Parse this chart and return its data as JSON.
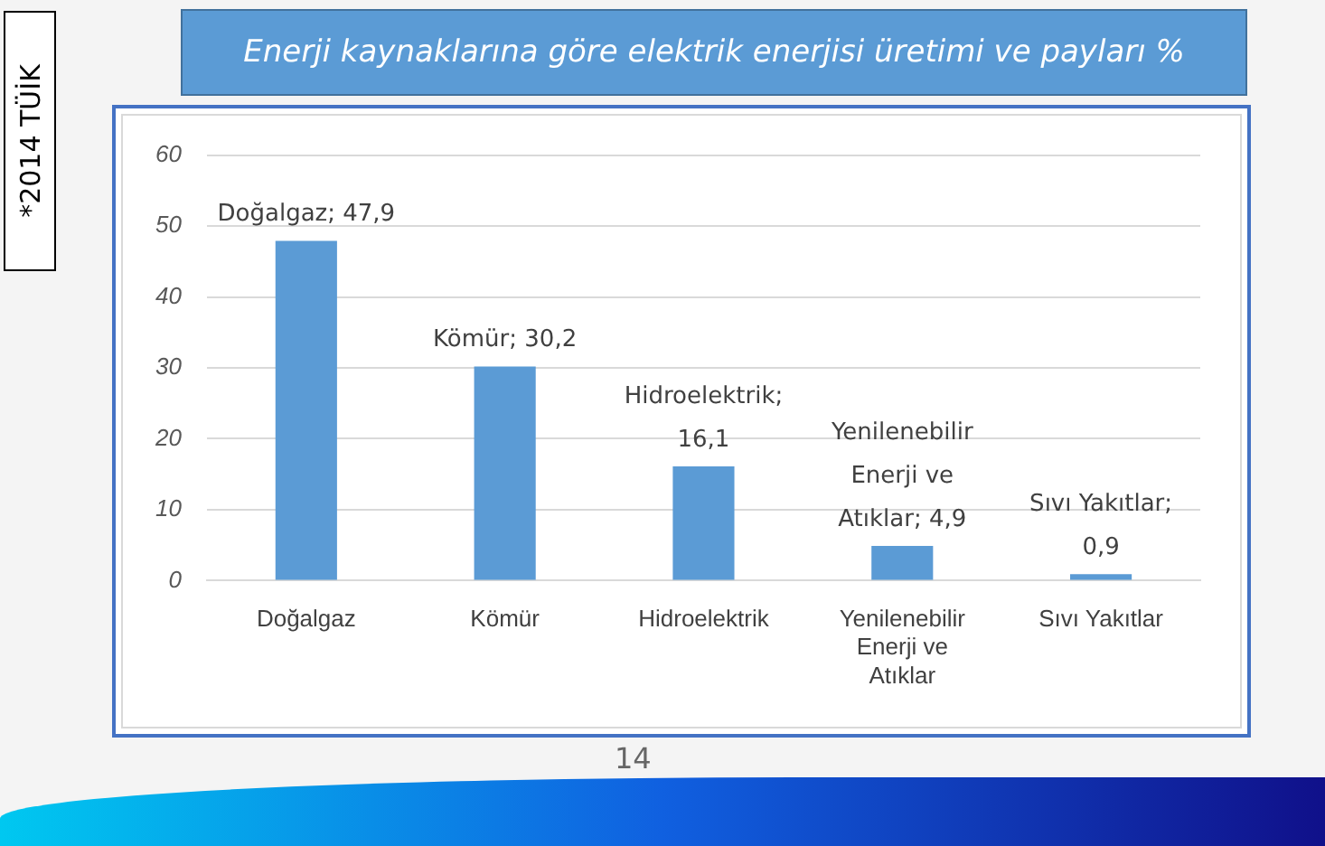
{
  "chart_data": {
    "type": "bar",
    "title": "Enerji kaynaklarına göre elektrik enerjisi üretimi ve payları %",
    "categories": [
      "Doğalgaz",
      "Kömür",
      "Hidroelektrik",
      "Yenilenebilir Enerji ve Atıklar",
      "Sıvı Yakıtlar"
    ],
    "values": [
      47.9,
      30.2,
      16.1,
      4.9,
      0.9
    ],
    "value_labels": [
      "Doğalgaz; 47,9",
      "Kömür; 30,2",
      "Hidroelektrik; 16,1",
      "Yenilenebilir Enerji ve Atıklar; 4,9",
      "Sıvı Yakıtlar; 0,9"
    ],
    "color": "#5b9bd5",
    "ylim": [
      0,
      60
    ],
    "yticks": [
      0,
      10,
      20,
      30,
      40,
      50,
      60
    ],
    "grid": "y",
    "legend": false,
    "annotations": [
      "*2014 TÜİK",
      "14"
    ]
  }
}
